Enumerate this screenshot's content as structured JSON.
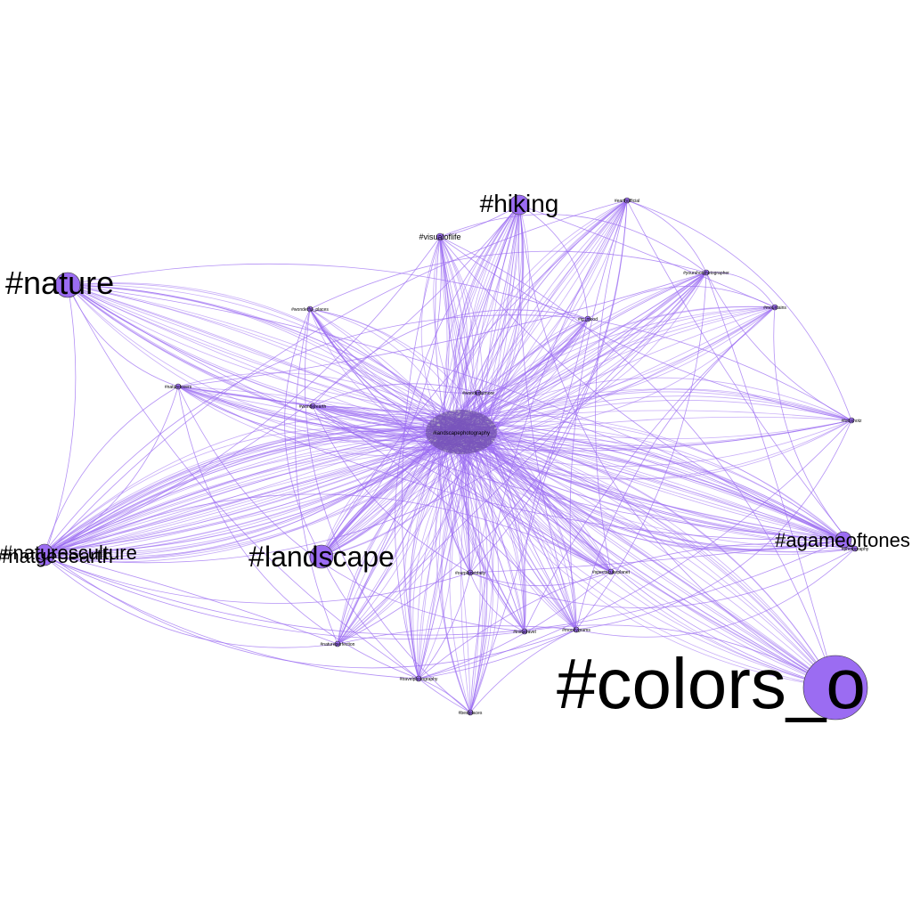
{
  "colors": {
    "edge": "#9b6cf2",
    "node": "#9b6cf2",
    "label": "#000000",
    "background": "#ffffff"
  },
  "graph": {
    "center_cluster": "#landscapephotography",
    "nodes": [
      {
        "id": "colors",
        "label": "#colors_o"
      },
      {
        "id": "nature",
        "label": "#nature"
      },
      {
        "id": "hiking",
        "label": "#hiking"
      },
      {
        "id": "landscape",
        "label": "#landscape"
      },
      {
        "id": "agameoftones",
        "label": "#agameoftones"
      },
      {
        "id": "left_a",
        "label": "#natgeoearth"
      },
      {
        "id": "left_b",
        "label": "#naturesculture"
      },
      {
        "id": "visualoflife",
        "label": "#visualoflife"
      },
      {
        "id": "earthofficial",
        "label": "#earthofficial"
      },
      {
        "id": "yourphotographer",
        "label": "#yourshotphotographer"
      },
      {
        "id": "mountains",
        "label": "#mountains"
      },
      {
        "id": "fotoshots",
        "label": "#fotoshotz"
      },
      {
        "id": "wonderful",
        "label": "#wonderful_places"
      },
      {
        "id": "igpic",
        "label": "#ig_mood"
      },
      {
        "id": "naturelovers",
        "label": "#naturelovers"
      },
      {
        "id": "wonderearth",
        "label": "#wonderearth"
      },
      {
        "id": "wonderfulmore",
        "label": "#wonderfulmore"
      },
      {
        "id": "spectacular",
        "label": "#spectacularplanet"
      },
      {
        "id": "ourplanet",
        "label": "#ourplanetdaily"
      },
      {
        "id": "natureperfect",
        "label": "#natureperfection"
      },
      {
        "id": "travelphotography",
        "label": "#travelphotography"
      },
      {
        "id": "mood",
        "label": "#moodygrams"
      },
      {
        "id": "ilovetravel",
        "label": "#instatravel"
      },
      {
        "id": "bestplace",
        "label": "#bestplaces"
      },
      {
        "id": "photo_world",
        "label": "#photography"
      }
    ]
  }
}
